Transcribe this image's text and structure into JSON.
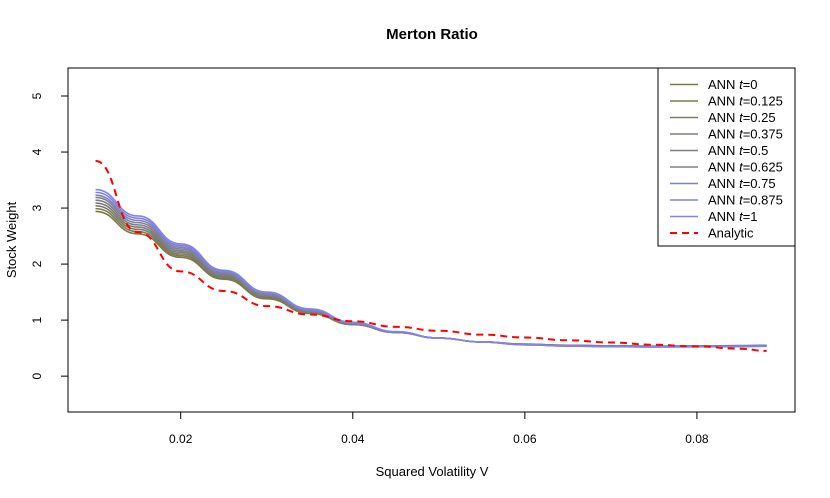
{
  "chart_data": {
    "type": "line",
    "title": "Merton Ratio",
    "xlabel": "Squared Volatility V",
    "ylabel": "Stock Weight",
    "xlim": [
      0.0069,
      0.0914
    ],
    "ylim": [
      -0.64,
      5.5
    ],
    "xticks": [
      0.02,
      0.04,
      0.06,
      0.08
    ],
    "xtick_labels": [
      "0.02",
      "0.04",
      "0.06",
      "0.08"
    ],
    "yticks": [
      0,
      1,
      2,
      3,
      4,
      5
    ],
    "ytick_labels": [
      "0",
      "1",
      "2",
      "3",
      "4",
      "5"
    ],
    "legend_position": "top-right",
    "x": [
      0.0101,
      0.015,
      0.02,
      0.025,
      0.03,
      0.035,
      0.04,
      0.045,
      0.05,
      0.055,
      0.06,
      0.065,
      0.07,
      0.075,
      0.08,
      0.085,
      0.0881
    ],
    "series": [
      {
        "name": "ANN t=0",
        "prefix": "ANN ",
        "variable": "t",
        "suffix": "=0",
        "color": "#7a7a44",
        "style": "solid",
        "values": [
          2.94,
          2.54,
          2.12,
          1.73,
          1.38,
          1.12,
          0.92,
          0.78,
          0.68,
          0.61,
          0.57,
          0.55,
          0.54,
          0.535,
          0.54,
          0.545,
          0.55
        ]
      },
      {
        "name": "ANN t=0.125",
        "prefix": "ANN ",
        "variable": "t",
        "suffix": "=0.125",
        "color": "#7b7b55",
        "style": "solid",
        "values": [
          2.99,
          2.58,
          2.15,
          1.75,
          1.4,
          1.13,
          0.92,
          0.78,
          0.68,
          0.61,
          0.57,
          0.55,
          0.54,
          0.533,
          0.537,
          0.542,
          0.547
        ]
      },
      {
        "name": "ANN t=0.25",
        "prefix": "ANN ",
        "variable": "t",
        "suffix": "=0.25",
        "color": "#7c7c66",
        "style": "solid",
        "values": [
          3.04,
          2.62,
          2.18,
          1.77,
          1.42,
          1.14,
          0.93,
          0.78,
          0.68,
          0.61,
          0.57,
          0.548,
          0.538,
          0.532,
          0.535,
          0.54,
          0.545
        ]
      },
      {
        "name": "ANN t=0.375",
        "prefix": "ANN ",
        "variable": "t",
        "suffix": "=0.375",
        "color": "#7d7d77",
        "style": "solid",
        "values": [
          3.09,
          2.66,
          2.21,
          1.79,
          1.43,
          1.15,
          0.93,
          0.78,
          0.68,
          0.61,
          0.568,
          0.546,
          0.536,
          0.53,
          0.533,
          0.538,
          0.543
        ]
      },
      {
        "name": "ANN t=0.5",
        "prefix": "ANN ",
        "variable": "t",
        "suffix": "=0.5",
        "color": "#7e7e88",
        "style": "solid",
        "values": [
          3.14,
          2.7,
          2.24,
          1.81,
          1.44,
          1.16,
          0.94,
          0.785,
          0.68,
          0.61,
          0.566,
          0.544,
          0.534,
          0.528,
          0.531,
          0.536,
          0.541
        ]
      },
      {
        "name": "ANN t=0.625",
        "prefix": "ANN ",
        "variable": "t",
        "suffix": "=0.625",
        "color": "#7f7f99",
        "style": "solid",
        "values": [
          3.19,
          2.74,
          2.27,
          1.83,
          1.46,
          1.17,
          0.94,
          0.785,
          0.68,
          0.61,
          0.564,
          0.542,
          0.532,
          0.526,
          0.529,
          0.534,
          0.539
        ]
      },
      {
        "name": "ANN t=0.75",
        "prefix": "ANN ",
        "variable": "t",
        "suffix": "=0.75",
        "color": "#8080bb",
        "style": "solid",
        "values": [
          3.23,
          2.78,
          2.3,
          1.85,
          1.47,
          1.18,
          0.95,
          0.79,
          0.68,
          0.61,
          0.562,
          0.54,
          0.53,
          0.524,
          0.527,
          0.532,
          0.537
        ]
      },
      {
        "name": "ANN t=0.875",
        "prefix": "ANN ",
        "variable": "t",
        "suffix": "=0.875",
        "color": "#8181dd",
        "style": "solid",
        "values": [
          3.28,
          2.82,
          2.33,
          1.87,
          1.49,
          1.19,
          0.955,
          0.79,
          0.68,
          0.61,
          0.56,
          0.538,
          0.528,
          0.522,
          0.525,
          0.53,
          0.535
        ]
      },
      {
        "name": "ANN t=1",
        "prefix": "ANN ",
        "variable": "t",
        "suffix": "=1",
        "color": "#8282ee",
        "style": "solid",
        "values": [
          3.33,
          2.86,
          2.36,
          1.89,
          1.5,
          1.2,
          0.96,
          0.795,
          0.68,
          0.61,
          0.558,
          0.536,
          0.526,
          0.52,
          0.523,
          0.528,
          0.533
        ]
      },
      {
        "name": "Analytic",
        "prefix": "",
        "variable": "",
        "suffix": "Analytic",
        "color": "#ff0000",
        "style": "dashed",
        "values": [
          3.84,
          2.57,
          1.87,
          1.52,
          1.25,
          1.1,
          0.98,
          0.88,
          0.81,
          0.74,
          0.69,
          0.64,
          0.6,
          0.56,
          0.53,
          0.49,
          0.45
        ]
      }
    ]
  }
}
